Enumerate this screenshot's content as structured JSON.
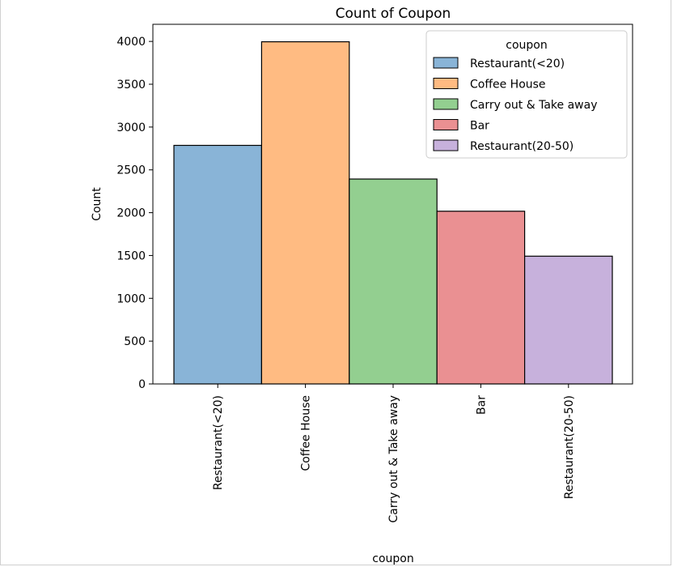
{
  "chart_data": {
    "type": "bar",
    "title": "Count of Coupon",
    "xlabel": "coupon",
    "ylabel": "Count",
    "categories": [
      "Restaurant(<20)",
      "Coffee House",
      "Carry out & Take away",
      "Bar",
      "Restaurant(20-50)"
    ],
    "values": [
      2786,
      3996,
      2393,
      2017,
      1492
    ],
    "colors": [
      "#89b4d7",
      "#ffbb82",
      "#93cf90",
      "#ea9092",
      "#c7b1dc"
    ],
    "ylim": [
      0,
      4200
    ],
    "yticks": [
      0,
      500,
      1000,
      1500,
      2000,
      2500,
      3000,
      3500,
      4000
    ],
    "grid": false,
    "legend": {
      "title": "coupon",
      "placement": "top-right",
      "entries": [
        "Restaurant(<20)",
        "Coffee House",
        "Carry out & Take away",
        "Bar",
        "Restaurant(20-50)"
      ]
    }
  }
}
